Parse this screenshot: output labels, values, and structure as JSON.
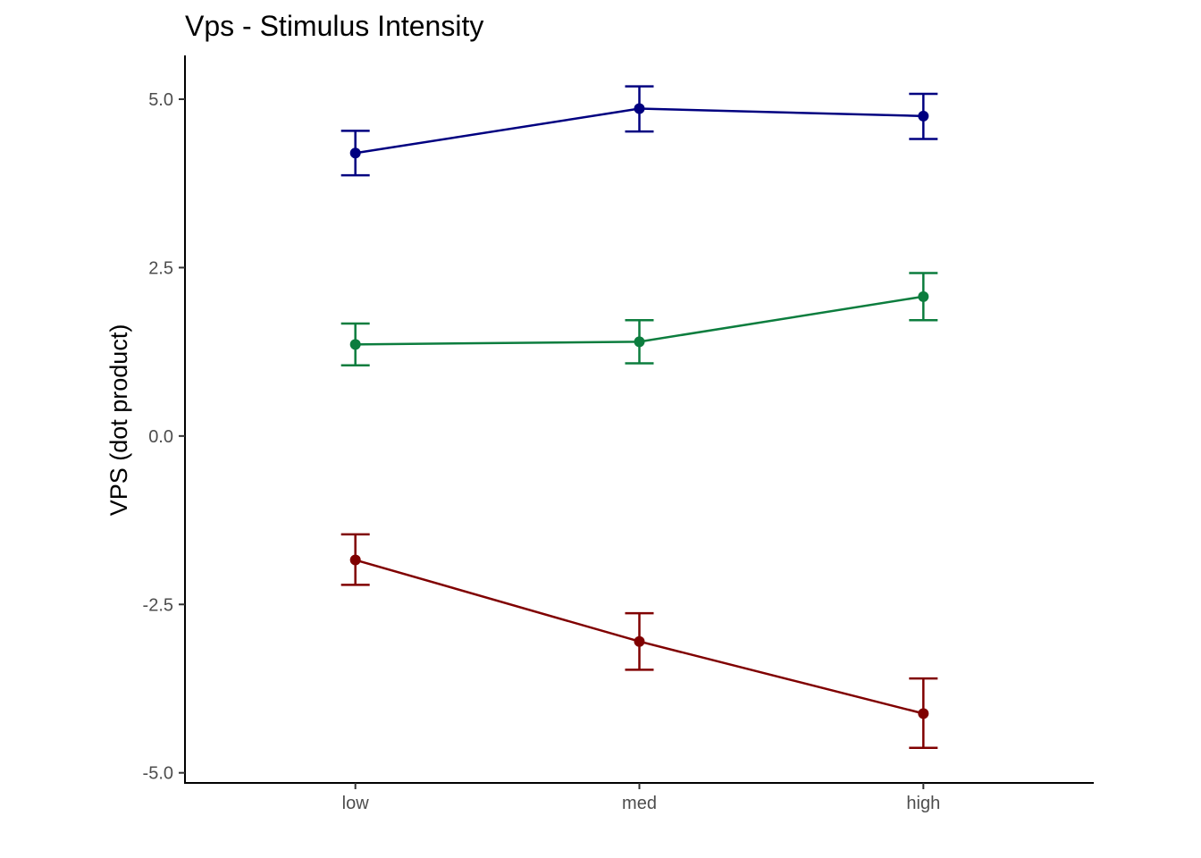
{
  "chart_data": {
    "type": "line",
    "title": "Vps - Stimulus Intensity",
    "xlabel": "",
    "ylabel": "VPS  (dot product)",
    "categories": [
      "low",
      "med",
      "high"
    ],
    "ylim": [
      -5.15,
      5.65
    ],
    "yticks": [
      5.0,
      2.5,
      0.0,
      -2.5,
      -5.0
    ],
    "ytick_labels": [
      "5.0",
      "2.5",
      "0.0",
      "-2.5",
      "-5.0"
    ],
    "grid": false,
    "legend": "none",
    "error_bars": true,
    "series": [
      {
        "color": "#000080",
        "values": [
          4.2,
          4.86,
          4.75
        ],
        "err_low": [
          3.87,
          4.52,
          4.41
        ],
        "err_high": [
          4.53,
          5.19,
          5.08
        ]
      },
      {
        "color": "#0c7d3e",
        "values": [
          1.36,
          1.4,
          2.07
        ],
        "err_low": [
          1.05,
          1.08,
          1.72
        ],
        "err_high": [
          1.67,
          1.72,
          2.42
        ]
      },
      {
        "color": "#800000",
        "values": [
          -1.84,
          -3.05,
          -4.12
        ],
        "err_low": [
          -2.21,
          -3.47,
          -4.63
        ],
        "err_high": [
          -1.46,
          -2.63,
          -3.6
        ]
      }
    ]
  }
}
